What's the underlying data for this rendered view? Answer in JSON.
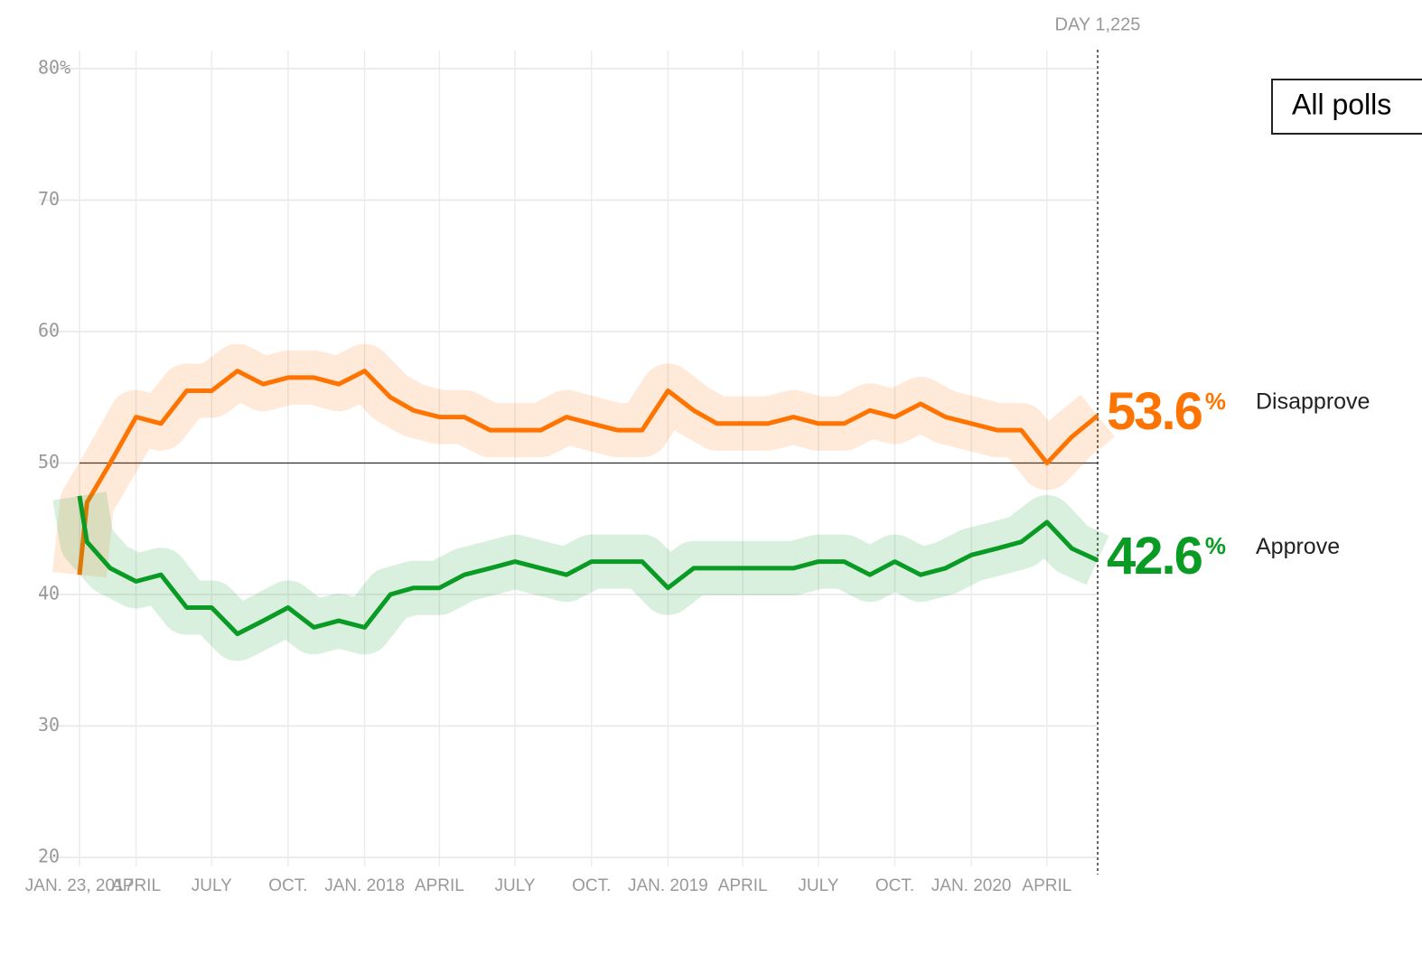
{
  "chart_data": {
    "type": "line",
    "annotation": "DAY 1,225",
    "button": "All polls",
    "value_suffix": "%",
    "x": [
      "2017-01-23",
      "2017-02",
      "2017-03",
      "2017-04",
      "2017-05",
      "2017-06",
      "2017-07",
      "2017-08",
      "2017-09",
      "2017-10",
      "2017-11",
      "2017-12",
      "2018-01",
      "2018-02",
      "2018-03",
      "2018-04",
      "2018-05",
      "2018-06",
      "2018-07",
      "2018-08",
      "2018-09",
      "2018-10",
      "2018-11",
      "2018-12",
      "2019-01",
      "2019-02",
      "2019-03",
      "2019-04",
      "2019-05",
      "2019-06",
      "2019-07",
      "2019-08",
      "2019-09",
      "2019-10",
      "2019-11",
      "2019-12",
      "2020-01",
      "2020-02",
      "2020-03",
      "2020-04",
      "2020-05",
      "2020-06"
    ],
    "series": [
      {
        "name": "Disapprove",
        "color": "#ff7400",
        "values": [
          41.5,
          47,
          50,
          53.5,
          53,
          55.5,
          55.5,
          57,
          56,
          56.5,
          56.5,
          56,
          57,
          55,
          54,
          53.5,
          53.5,
          52.5,
          52.5,
          52.5,
          53.5,
          53,
          52.5,
          52.5,
          55.5,
          54,
          53,
          53,
          53,
          53.5,
          53,
          53,
          54,
          53.5,
          54.5,
          53.5,
          53,
          52.5,
          52.5,
          50,
          52,
          53.6
        ]
      },
      {
        "name": "Approve",
        "color": "#0a9b25",
        "values": [
          47.5,
          44,
          42,
          41,
          41.5,
          39,
          39,
          37,
          38,
          39,
          37.5,
          38,
          37.5,
          40,
          40.5,
          40.5,
          41.5,
          42,
          42.5,
          42,
          41.5,
          42.5,
          42.5,
          42.5,
          40.5,
          42,
          42,
          42,
          42,
          42,
          42.5,
          42.5,
          41.5,
          42.5,
          41.5,
          42,
          43,
          43.5,
          44,
          45.5,
          43.5,
          42.6
        ]
      }
    ],
    "xlim": [
      "2017-01-23",
      "2020-06"
    ],
    "xticks": [
      {
        "value": "2017-01-23",
        "label": "JAN. 23, 2017"
      },
      {
        "value": "2017-04",
        "label": "APRIL"
      },
      {
        "value": "2017-07",
        "label": "JULY"
      },
      {
        "value": "2017-10",
        "label": "OCT."
      },
      {
        "value": "2018-01",
        "label": "JAN. 2018"
      },
      {
        "value": "2018-04",
        "label": "APRIL"
      },
      {
        "value": "2018-07",
        "label": "JULY"
      },
      {
        "value": "2018-10",
        "label": "OCT."
      },
      {
        "value": "2019-01",
        "label": "JAN. 2019"
      },
      {
        "value": "2019-04",
        "label": "APRIL"
      },
      {
        "value": "2019-07",
        "label": "JULY"
      },
      {
        "value": "2019-10",
        "label": "OCT."
      },
      {
        "value": "2020-01",
        "label": "JAN. 2020"
      },
      {
        "value": "2020-04",
        "label": "APRIL"
      }
    ],
    "ylim": [
      20,
      80
    ],
    "yticks": [
      20,
      30,
      40,
      50,
      60,
      70,
      {
        "value": 80,
        "label": "80%"
      }
    ],
    "reference_line": 50,
    "grid": true
  }
}
